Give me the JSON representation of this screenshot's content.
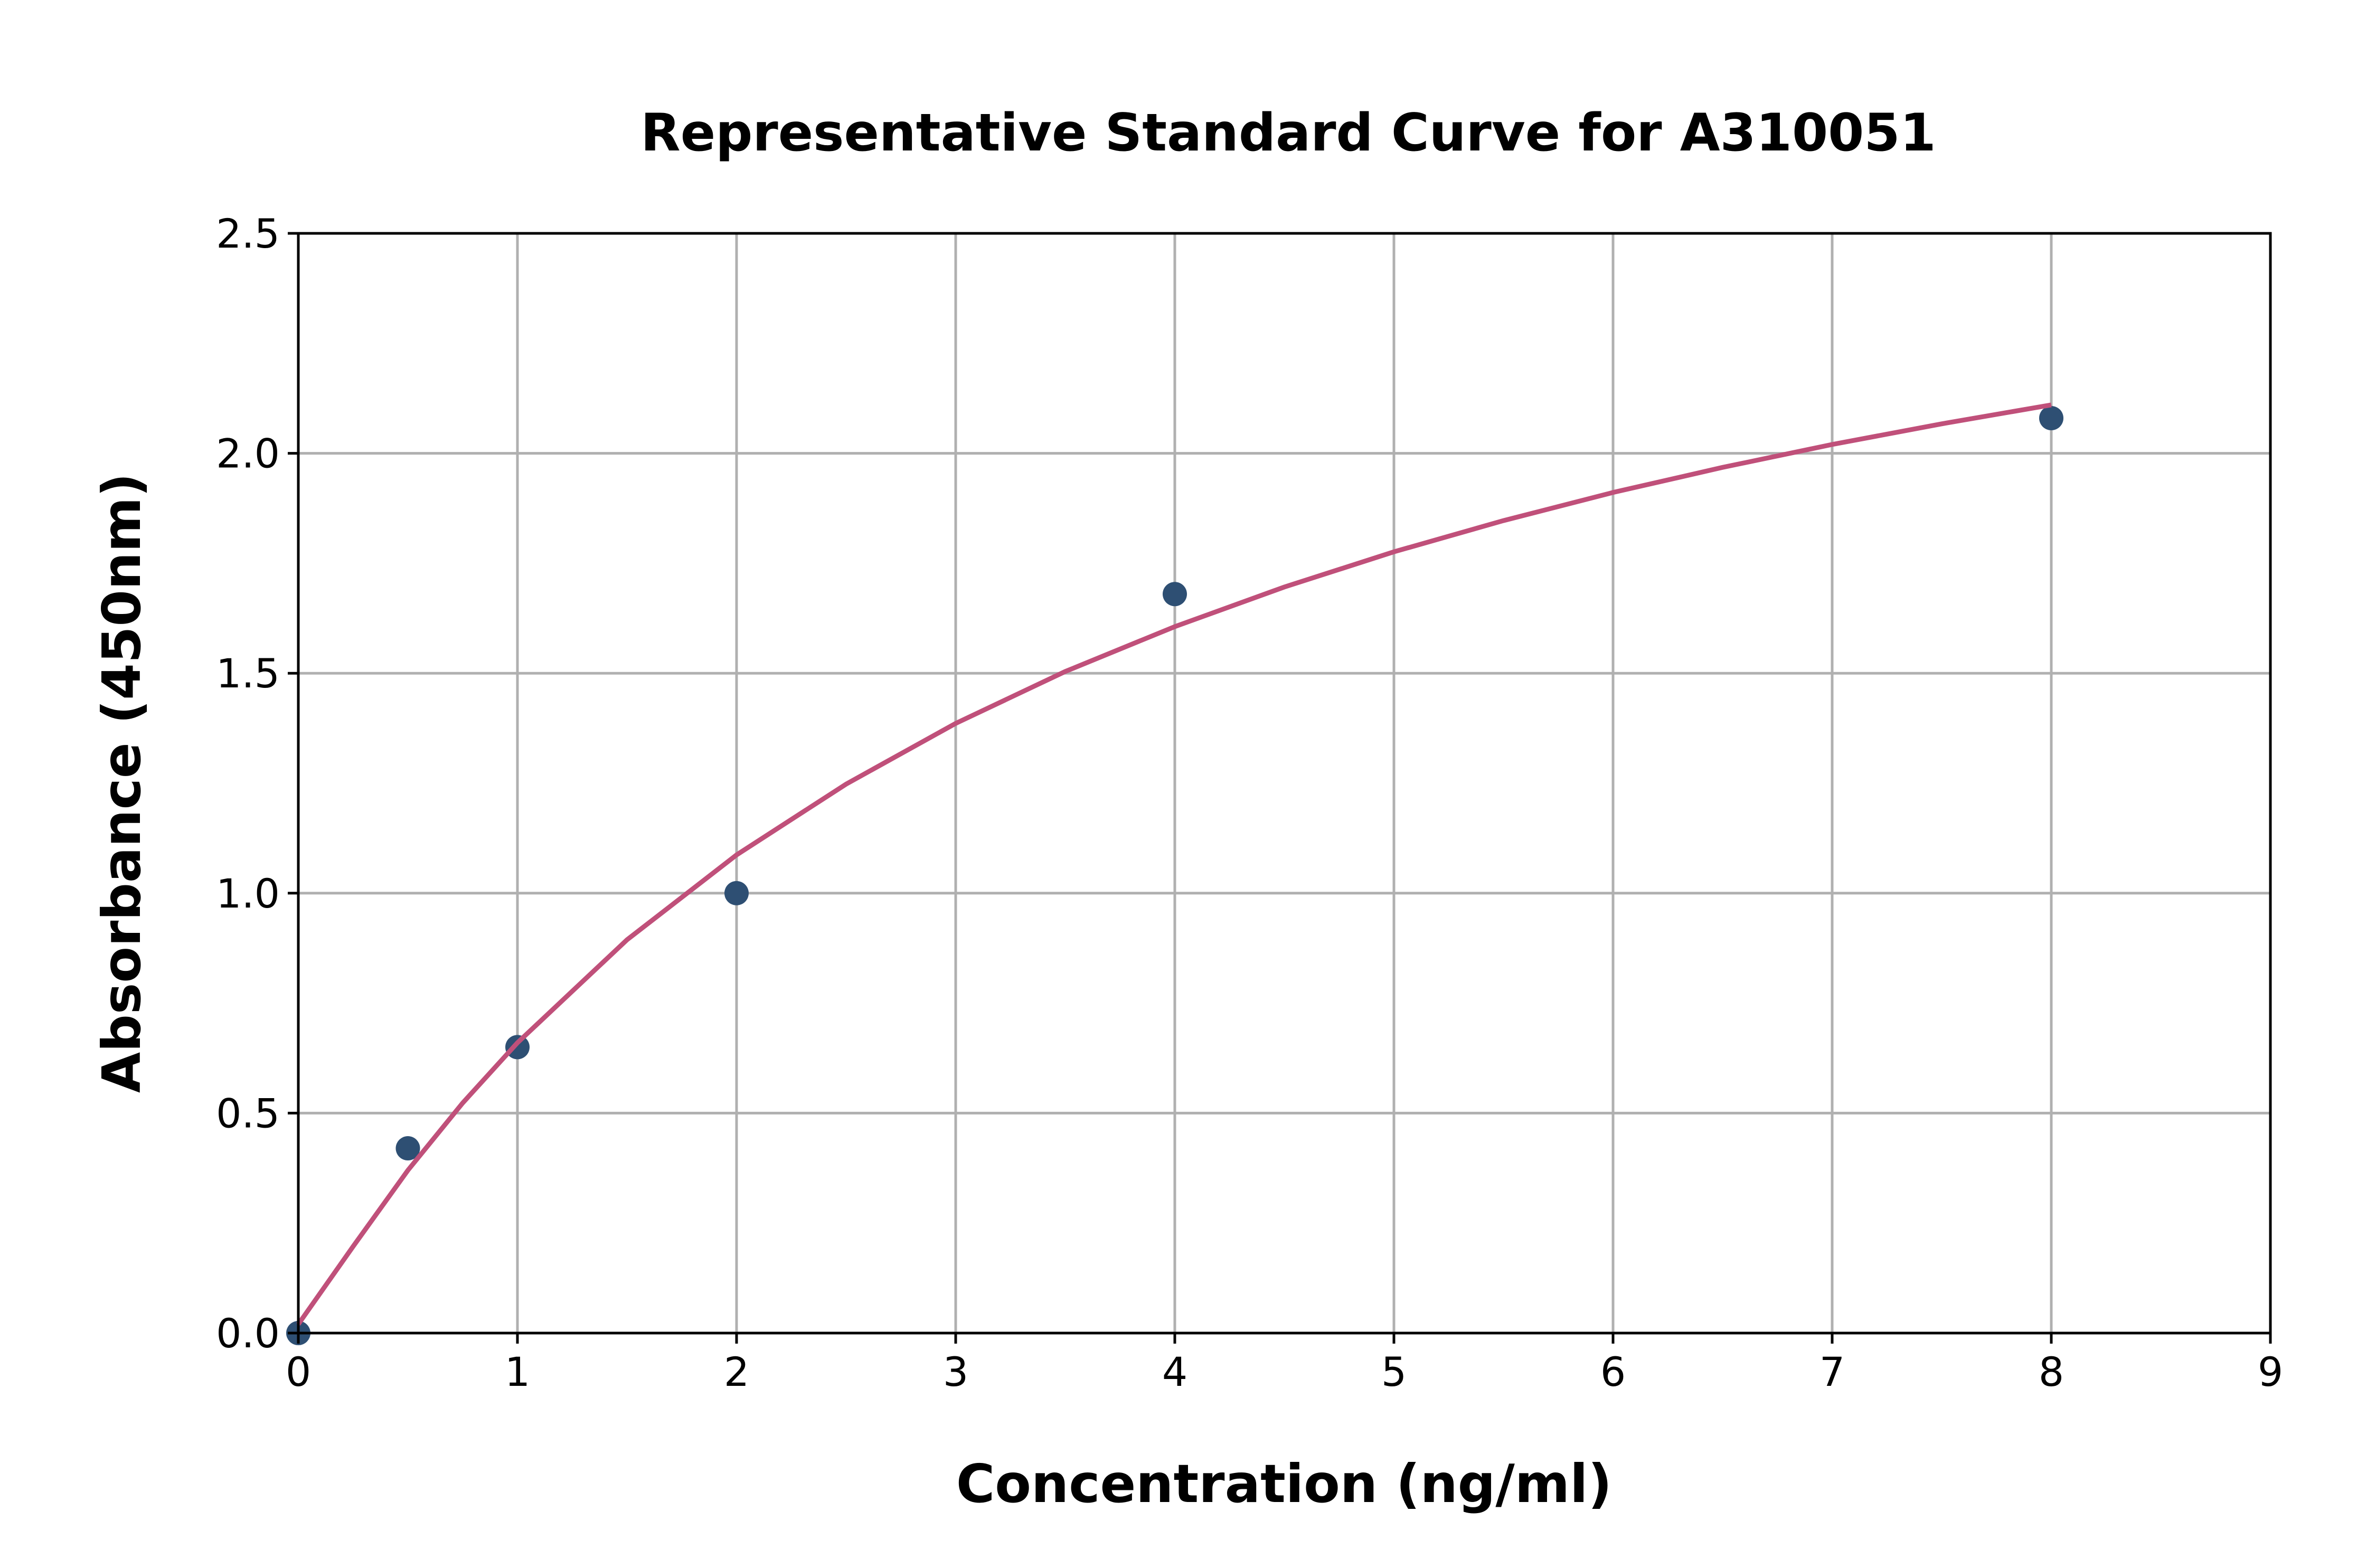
{
  "chart_data": {
    "type": "scatter",
    "title": "Representative Standard Curve for A310051",
    "xlabel": "Concentration (ng/ml)",
    "ylabel": "Absorbance (450nm)",
    "xlim": [
      0,
      9
    ],
    "ylim": [
      0,
      2.5
    ],
    "xticks": [
      "0",
      "1",
      "2",
      "3",
      "4",
      "5",
      "6",
      "7",
      "8",
      "9"
    ],
    "yticks": [
      "0.0",
      "0.5",
      "1.0",
      "1.5",
      "2.0",
      "2.5"
    ],
    "grid": true,
    "points": {
      "x": [
        0,
        0.5,
        1,
        2,
        4,
        8
      ],
      "y": [
        0.0,
        0.42,
        0.65,
        1.0,
        1.68,
        2.08
      ],
      "color": "#2e4f73"
    },
    "fit_curve": {
      "x": [
        0,
        0.25,
        0.5,
        0.75,
        1,
        1.5,
        2,
        2.5,
        3,
        3.5,
        4,
        4.5,
        5,
        5.5,
        6,
        6.5,
        7,
        7.5,
        8
      ],
      "y": [
        0.02,
        0.197,
        0.37,
        0.523,
        0.66,
        0.894,
        1.087,
        1.248,
        1.386,
        1.504,
        1.606,
        1.696,
        1.776,
        1.847,
        1.911,
        1.968,
        2.02,
        2.067,
        2.11
      ],
      "color": "#c0507a"
    }
  }
}
